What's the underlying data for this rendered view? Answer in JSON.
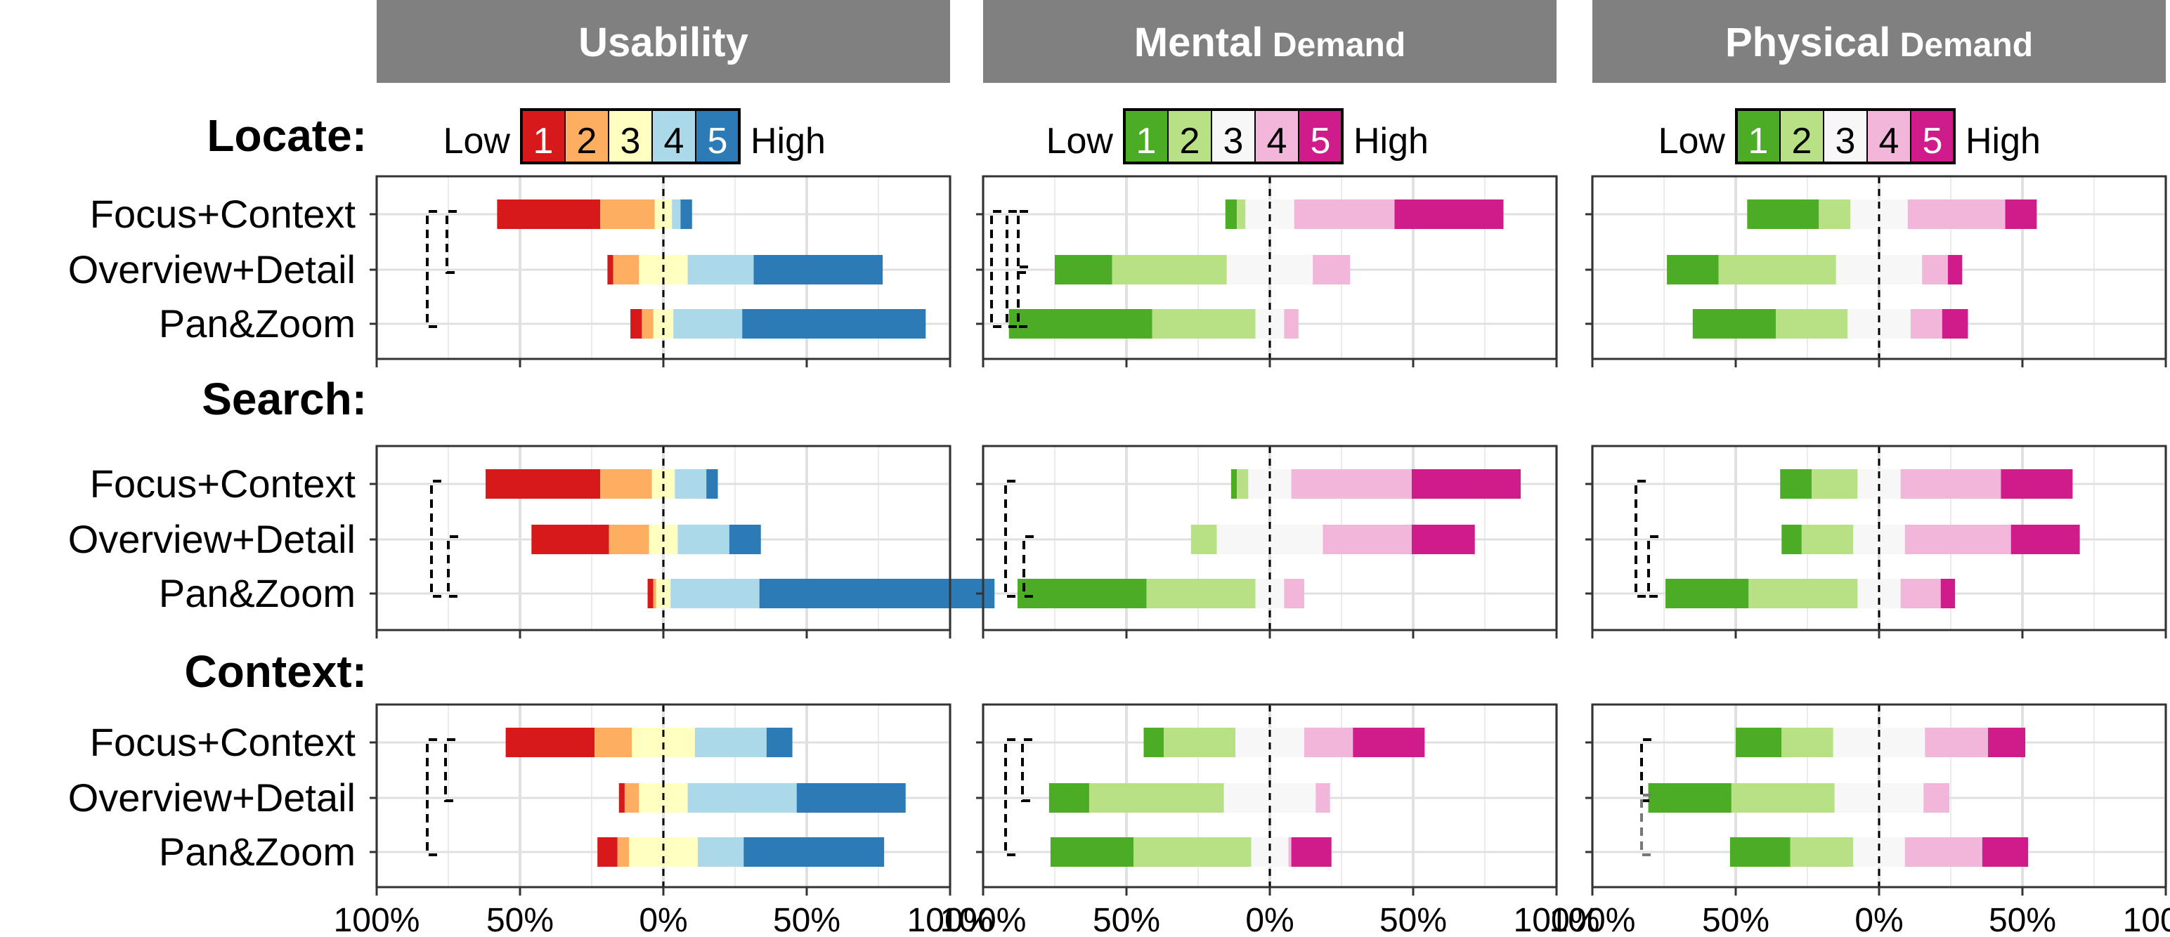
{
  "chart_data": {
    "type": "bar",
    "layout": "diverging stacked bar grid (3 measures x 3 tasks)",
    "measures": [
      {
        "key": "usability",
        "title_bold": "Usability",
        "title_rest": "",
        "legend_low": "Low",
        "legend_high": "High",
        "legend_codes": [
          "1",
          "2",
          "3",
          "4",
          "5"
        ],
        "colors": [
          "#d7191c",
          "#fdae61",
          "#ffffbf",
          "#abd9e9",
          "#2c7bb6"
        ],
        "legend_text_colors": [
          "#ffffff",
          "#000000",
          "#000000",
          "#000000",
          "#ffffff"
        ]
      },
      {
        "key": "mental",
        "title_bold": "Mental",
        "title_rest": " Demand",
        "legend_low": "Low",
        "legend_high": "High",
        "legend_codes": [
          "1",
          "2",
          "3",
          "4",
          "5"
        ],
        "colors": [
          "#4dac26",
          "#b8e186",
          "#f7f7f7",
          "#f1b6da",
          "#d01c8b"
        ],
        "legend_text_colors": [
          "#ffffff",
          "#000000",
          "#000000",
          "#000000",
          "#ffffff"
        ]
      },
      {
        "key": "physical",
        "title_bold": "Physical",
        "title_rest": " Demand",
        "legend_low": "Low",
        "legend_high": "High",
        "legend_codes": [
          "1",
          "2",
          "3",
          "4",
          "5"
        ],
        "colors": [
          "#4dac26",
          "#b8e186",
          "#f7f7f7",
          "#f1b6da",
          "#d01c8b"
        ],
        "legend_text_colors": [
          "#ffffff",
          "#000000",
          "#000000",
          "#000000",
          "#ffffff"
        ]
      }
    ],
    "tasks": [
      "Locate:",
      "Search:",
      "Context:"
    ],
    "techniques": [
      "Focus+Context",
      "Overview+Detail",
      "Pan&Zoom"
    ],
    "x_axis": {
      "range": [
        -100,
        100
      ],
      "ticks": [
        -100,
        -50,
        0,
        50,
        100
      ],
      "tick_labels": [
        "100%",
        "50%",
        "0%",
        "50%",
        "100%"
      ]
    },
    "units": "percent of responses; segments 1-5, neutral (3) centred on 0",
    "data": {
      "usability": [
        [
          [
            36,
            19,
            6,
            3,
            4
          ],
          [
            2,
            9,
            17,
            23,
            45
          ],
          [
            4,
            4,
            7,
            24,
            64
          ]
        ],
        [
          [
            40,
            18,
            8,
            11,
            4
          ],
          [
            27,
            14,
            10,
            18,
            11
          ],
          [
            2,
            1,
            5,
            31,
            82
          ]
        ],
        [
          [
            31,
            13,
            22,
            25,
            9
          ],
          [
            2,
            5,
            17,
            38,
            38
          ],
          [
            7,
            4,
            24,
            16,
            49
          ]
        ]
      ],
      "mental": [
        [
          [
            4,
            3,
            17,
            35,
            38
          ],
          [
            20,
            40,
            30,
            13,
            0
          ],
          [
            50,
            36,
            10,
            5,
            0
          ]
        ],
        [
          [
            2,
            4,
            15,
            42,
            38
          ],
          [
            0,
            9,
            37,
            31,
            22
          ],
          [
            45,
            38,
            10,
            7,
            0
          ]
        ],
        [
          [
            7,
            25,
            24,
            17,
            25
          ],
          [
            14,
            47,
            32,
            5,
            0
          ],
          [
            29,
            41,
            13,
            1,
            14
          ]
        ]
      ],
      "physical": [
        [
          [
            25,
            11,
            20,
            34,
            11
          ],
          [
            18,
            41,
            30,
            9,
            5
          ],
          [
            29,
            25,
            22,
            11,
            9
          ]
        ],
        [
          [
            11,
            16,
            15,
            35,
            25
          ],
          [
            7,
            18,
            18,
            37,
            24
          ],
          [
            29,
            38,
            15,
            14,
            5
          ]
        ],
        [
          [
            16,
            18,
            32,
            22,
            13
          ],
          [
            29,
            36,
            31,
            9,
            0
          ],
          [
            21,
            22,
            18,
            27,
            16
          ]
        ]
      ]
    },
    "significance_brackets": "dashed brackets at left of each panel mark pairwise significant differences (one grey)"
  }
}
